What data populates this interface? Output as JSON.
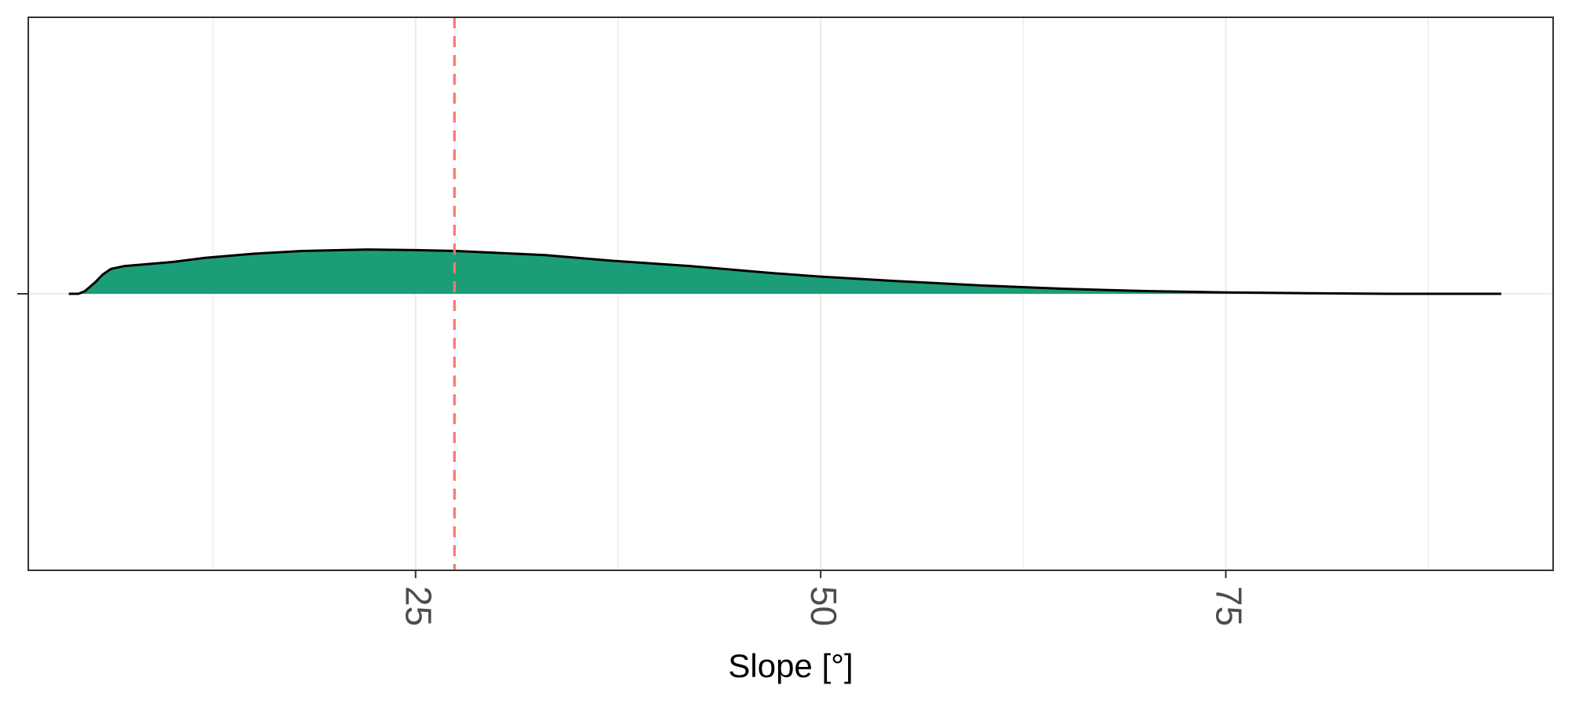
{
  "chart_data": {
    "type": "area",
    "title": "",
    "xlabel": "Slope [°]",
    "ylabel": "",
    "xlim": [
      1.1,
      95.2
    ],
    "ylim": [
      -1.0,
      1.0
    ],
    "x_ticks": [
      25,
      50,
      75
    ],
    "x_tick_labels": [
      "25",
      "50",
      "75"
    ],
    "x_minor_gridlines": [
      12.5,
      37.5,
      62.5,
      87.5
    ],
    "x_tick_label_rotation": 90,
    "y_ticks": [
      0
    ],
    "grid": true,
    "legend": "none",
    "series": [
      {
        "kind": "density",
        "fill_color": "#1b9e77",
        "line_color": "#000000",
        "x": [
          3.6,
          4.2,
          4.6,
          5.2,
          5.7,
          6.2,
          7.0,
          8.0,
          10.0,
          12.0,
          15.0,
          18.0,
          22.0,
          25.0,
          27.5,
          30.0,
          33.0,
          37.0,
          42.0,
          47.0,
          50.0,
          55.0,
          60.0,
          65.0,
          70.0,
          75.0,
          80.0,
          85.0,
          90.0,
          92.0
        ],
        "y": [
          0.0,
          0.0,
          0.01,
          0.04,
          0.07,
          0.09,
          0.1,
          0.105,
          0.115,
          0.13,
          0.145,
          0.155,
          0.16,
          0.158,
          0.155,
          0.148,
          0.14,
          0.12,
          0.1,
          0.075,
          0.062,
          0.045,
          0.03,
          0.018,
          0.01,
          0.005,
          0.002,
          0.0,
          0.0,
          0.0
        ]
      }
    ],
    "reference_line": {
      "x": 27.4,
      "orientation": "vertical",
      "style": "dashed",
      "color": "#f8766d"
    },
    "colors": {
      "gridline": "#ebebeb",
      "panel_border": "#333333",
      "tick_label": "#4d4d4d"
    }
  }
}
